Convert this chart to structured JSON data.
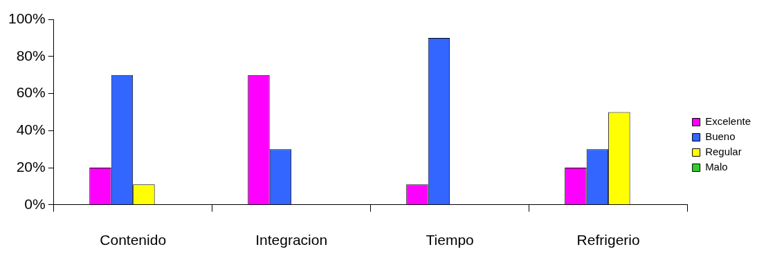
{
  "chart_data": {
    "type": "bar",
    "categories": [
      "Contenido",
      "Integracion",
      "Tiempo",
      "Refrigerio"
    ],
    "series": [
      {
        "name": "Excelente",
        "color": "#ff00ff",
        "values": [
          20,
          70,
          11,
          20
        ]
      },
      {
        "name": "Bueno",
        "color": "#3366ff",
        "values": [
          70,
          30,
          90,
          30
        ]
      },
      {
        "name": "Regular",
        "color": "#ffff00",
        "values": [
          11,
          0,
          0,
          50
        ]
      },
      {
        "name": "Malo",
        "color": "#33cc33",
        "values": [
          0,
          0,
          0,
          0
        ]
      }
    ],
    "ylim": [
      0,
      100
    ],
    "yticks": [
      {
        "value": 0,
        "label": "0%"
      },
      {
        "value": 20,
        "label": "20%"
      },
      {
        "value": 40,
        "label": "40%"
      },
      {
        "value": 60,
        "label": "60%"
      },
      {
        "value": 80,
        "label": "80%"
      },
      {
        "value": 100,
        "label": "100%"
      }
    ],
    "grid": false,
    "legend": "right"
  }
}
